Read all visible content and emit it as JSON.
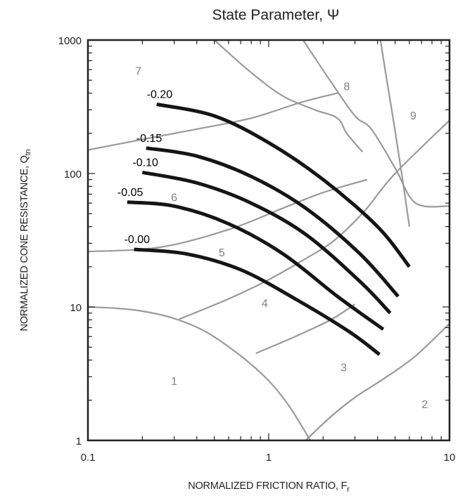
{
  "chart_data": {
    "type": "line",
    "title": "State Parameter, Ψ",
    "xlabel": "NORMALIZED FRICTION RATIO, F",
    "xlabel_sub": "r",
    "ylabel": "NORMALIZED CONE RESISTANCE, Q",
    "ylabel_sub": "tn",
    "xscale": "log",
    "yscale": "log",
    "xlim": [
      0.1,
      10
    ],
    "ylim": [
      1,
      1000
    ],
    "x_tick_labels": [
      "0.1",
      "1",
      "10"
    ],
    "y_tick_labels": [
      "1",
      "10",
      "100",
      "1000"
    ],
    "grid": false,
    "series": [
      {
        "name": "-0.20",
        "color": "#151515",
        "x": [
          0.24,
          0.5,
          1.0,
          2.0,
          4.0,
          6.0
        ],
        "y": [
          330,
          270,
          170,
          90,
          40,
          20
        ]
      },
      {
        "name": "-0.15",
        "color": "#151515",
        "x": [
          0.21,
          0.4,
          0.8,
          1.6,
          3.2,
          5.2
        ],
        "y": [
          155,
          135,
          95,
          55,
          25,
          12
        ]
      },
      {
        "name": "-0.10",
        "color": "#151515",
        "x": [
          0.2,
          0.4,
          0.8,
          1.6,
          3.2,
          4.7
        ],
        "y": [
          102,
          85,
          60,
          35,
          15.5,
          9
        ]
      },
      {
        "name": "-0.05",
        "color": "#151515",
        "x": [
          0.165,
          0.3,
          0.6,
          1.2,
          2.4,
          4.3
        ],
        "y": [
          61,
          57,
          42,
          25,
          12,
          6.8
        ]
      },
      {
        "name": "-0.00",
        "color": "#151515",
        "x": [
          0.18,
          0.35,
          0.7,
          1.4,
          2.8,
          4.1
        ],
        "y": [
          27,
          25,
          19,
          11.5,
          6.5,
          4.4
        ]
      }
    ],
    "zones": [
      {
        "name": "1",
        "color": "#808080",
        "x": 0.3,
        "y": 2.6
      },
      {
        "name": "2",
        "color": "#808080",
        "x": 7.3,
        "y": 1.75
      },
      {
        "name": "3",
        "color": "#808080",
        "x": 2.6,
        "y": 3.3
      },
      {
        "name": "4",
        "color": "#808080",
        "x": 0.95,
        "y": 10
      },
      {
        "name": "5",
        "color": "#808080",
        "x": 0.55,
        "y": 24
      },
      {
        "name": "6",
        "color": "#808080",
        "x": 0.3,
        "y": 62
      },
      {
        "name": "7",
        "color": "#808080",
        "x": 0.19,
        "y": 550
      },
      {
        "name": "8",
        "color": "#808080",
        "x": 2.7,
        "y": 420
      },
      {
        "name": "9",
        "color": "#808080",
        "x": 6.3,
        "y": 255
      }
    ],
    "zone_boundaries": [
      {
        "id": "b-1",
        "x": [
          0.1,
          0.14,
          0.2,
          0.3,
          0.45,
          0.7,
          1.0,
          1.3,
          1.7
        ],
        "y": [
          10,
          9.8,
          9.3,
          8.2,
          6.5,
          4.3,
          2.8,
          1.8,
          1.0
        ]
      },
      {
        "id": "b-2",
        "x": [
          1.6,
          2.2,
          3.0,
          4.5,
          6.5,
          10
        ],
        "y": [
          1.0,
          1.5,
          2.1,
          3.0,
          4.3,
          7.5
        ]
      },
      {
        "id": "b-3",
        "x": [
          0.32,
          0.6,
          1.0,
          1.6,
          2.2,
          2.8,
          3.5,
          5.0,
          10
        ],
        "y": [
          8.1,
          11.5,
          16,
          23,
          30,
          40,
          55,
          100,
          250
        ]
      },
      {
        "id": "b-4",
        "x": [
          0.85,
          1.4,
          2.2,
          3.0
        ],
        "y": [
          4.5,
          6.0,
          8.0,
          10.5
        ]
      },
      {
        "id": "b-5",
        "x": [
          0.1,
          0.25,
          0.6,
          1.2,
          2.0,
          3.5
        ],
        "y": [
          26,
          28,
          38,
          55,
          72,
          90
        ]
      },
      {
        "id": "b-6",
        "x": [
          0.1,
          0.2,
          0.4,
          0.8,
          1.5,
          2.4
        ],
        "y": [
          150,
          180,
          215,
          260,
          340,
          400
        ]
      },
      {
        "id": "b-7",
        "x": [
          0.5,
          0.8,
          1.2,
          1.8,
          2.4,
          2.7,
          3.3
        ],
        "y": [
          1000,
          570,
          380,
          300,
          260,
          200,
          145
        ]
      },
      {
        "id": "b-8",
        "x": [
          1.55,
          2.2,
          3.0,
          3.7,
          5.0,
          6.5,
          10
        ],
        "y": [
          1000,
          490,
          270,
          215,
          110,
          60,
          57
        ]
      },
      {
        "id": "b-9",
        "x": [
          4.15,
          4.5,
          5.0,
          5.5,
          6.0
        ],
        "y": [
          1000,
          500,
          210,
          90,
          40
        ]
      }
    ]
  }
}
